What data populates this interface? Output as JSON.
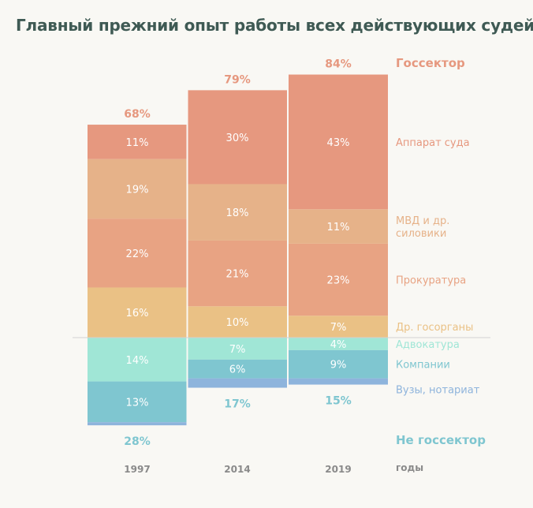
{
  "chart_data": {
    "type": "bar",
    "stacked": true,
    "title": "Главный прежний опыт работы всех действующих судей",
    "xlabel": "годы",
    "categories": [
      "1997",
      "2014",
      "2019"
    ],
    "series": [
      {
        "name": "Аппарат суда",
        "group": "gos",
        "color": "#e6987f",
        "values": [
          11,
          30,
          43
        ],
        "labels": [
          "11%",
          "30%",
          "43%"
        ]
      },
      {
        "name": "МВД и др. силовики",
        "group": "gos",
        "color": "#e6b289",
        "values": [
          19,
          18,
          11
        ],
        "labels": [
          "19%",
          "18%",
          "11%"
        ]
      },
      {
        "name": "Прокуратура",
        "group": "gos",
        "color": "#e8a383",
        "values": [
          22,
          21,
          23
        ],
        "labels": [
          "22%",
          "21%",
          "23%"
        ]
      },
      {
        "name": "Др. госорганы",
        "group": "gos",
        "color": "#eac185",
        "values": [
          16,
          10,
          7
        ],
        "labels": [
          "16%",
          "10%",
          "7%"
        ]
      },
      {
        "name": "Адвокатура",
        "group": "nongos",
        "color": "#a0e6d6",
        "values": [
          14,
          7,
          4
        ],
        "labels": [
          "14%",
          "7%",
          "4%"
        ]
      },
      {
        "name": "Компании",
        "group": "nongos",
        "color": "#7fc6d0",
        "values": [
          13,
          6,
          9
        ],
        "labels": [
          "13%",
          "6%",
          "9%"
        ]
      },
      {
        "name": "Вузы, нотариат",
        "group": "nongos",
        "color": "#8eb4dc",
        "values": [
          1,
          3,
          2
        ],
        "labels": [
          "",
          "",
          ""
        ]
      }
    ],
    "totals": {
      "gos": {
        "name": "Госсектор",
        "values": [
          68,
          79,
          84
        ],
        "labels": [
          "68%",
          "79%",
          "84%"
        ],
        "color": "#e6987f"
      },
      "nongos": {
        "name": "Не госсектор",
        "values": [
          28,
          17,
          15
        ],
        "labels": [
          "28%",
          "17%",
          "15%"
        ],
        "color": "#7fc6d0"
      }
    },
    "legend_labels": {
      "Аппарат суда": [
        "Аппарат суда"
      ],
      "МВД и др. силовики": [
        "МВД и др.",
        "силовики"
      ],
      "Прокуратура": [
        "Прокуратура"
      ],
      "Др. госорганы": [
        "Др. госорганы"
      ],
      "Адвокатура": [
        "Адвокатура"
      ],
      "Компании": [
        "Компании"
      ],
      "Вузы, нотариат": [
        "Вузы, нотариат"
      ]
    },
    "legend_position": "right"
  }
}
